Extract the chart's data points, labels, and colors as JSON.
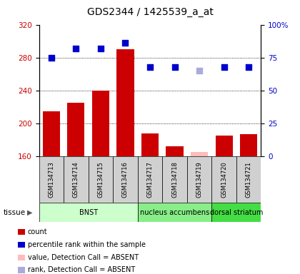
{
  "title": "GDS2344 / 1425539_a_at",
  "samples": [
    "GSM134713",
    "GSM134714",
    "GSM134715",
    "GSM134716",
    "GSM134717",
    "GSM134718",
    "GSM134719",
    "GSM134720",
    "GSM134721"
  ],
  "bar_values": [
    215,
    225,
    240,
    290,
    188,
    172,
    165,
    185,
    187
  ],
  "bar_absent": [
    false,
    false,
    false,
    false,
    false,
    false,
    true,
    false,
    false
  ],
  "bar_color_present": "#cc0000",
  "bar_color_absent": "#ffbbbb",
  "dot_values": [
    75,
    82,
    82,
    86,
    68,
    68,
    65,
    68,
    68
  ],
  "dot_absent": [
    false,
    false,
    false,
    false,
    false,
    false,
    true,
    false,
    false
  ],
  "dot_color_present": "#0000cc",
  "dot_color_absent": "#aaaadd",
  "ylim_left": [
    160,
    320
  ],
  "ylim_right": [
    0,
    100
  ],
  "yticks_left": [
    160,
    200,
    240,
    280,
    320
  ],
  "yticks_right": [
    0,
    25,
    50,
    75,
    100
  ],
  "ytick_labels_right": [
    "0",
    "25",
    "50",
    "75",
    "100%"
  ],
  "tissue_groups": [
    {
      "label": "BNST",
      "start": 0,
      "end": 4,
      "color": "#ccffcc"
    },
    {
      "label": "nucleus accumbens",
      "start": 4,
      "end": 7,
      "color": "#88ee88"
    },
    {
      "label": "dorsal striatum",
      "start": 7,
      "end": 9,
      "color": "#44dd44"
    }
  ],
  "legend_items": [
    {
      "label": "count",
      "color": "#cc0000"
    },
    {
      "label": "percentile rank within the sample",
      "color": "#0000cc"
    },
    {
      "label": "value, Detection Call = ABSENT",
      "color": "#ffbbbb"
    },
    {
      "label": "rank, Detection Call = ABSENT",
      "color": "#aaaadd"
    }
  ],
  "grid_values": [
    200,
    240,
    280
  ],
  "bar_bottom": 160,
  "title_fontsize": 10,
  "tick_fontsize": 7.5
}
